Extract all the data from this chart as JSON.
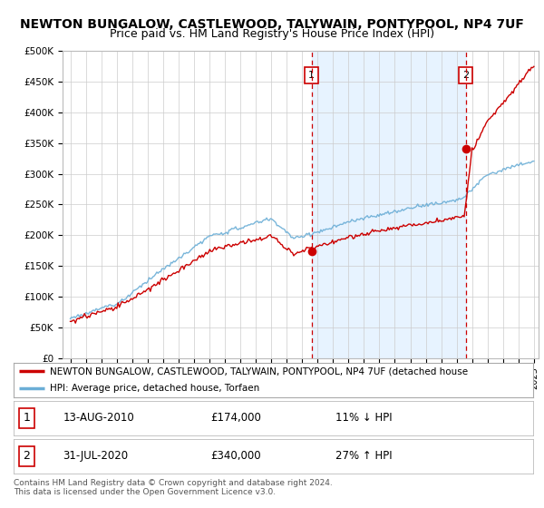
{
  "title": "NEWTON BUNGALOW, CASTLEWOOD, TALYWAIN, PONTYPOOL, NP4 7UF",
  "subtitle": "Price paid vs. HM Land Registry's House Price Index (HPI)",
  "title_fontsize": 10,
  "subtitle_fontsize": 9,
  "background_color": "#ffffff",
  "plot_bg_color": "#ffffff",
  "grid_color": "#cccccc",
  "hpi_color": "#6baed6",
  "hpi_fill_color": "#ddeeff",
  "price_color": "#cc0000",
  "vline_color": "#cc0000",
  "shade_alpha": 0.18,
  "ylim": [
    0,
    500000
  ],
  "yticks": [
    0,
    50000,
    100000,
    150000,
    200000,
    250000,
    300000,
    350000,
    400000,
    450000,
    500000
  ],
  "ytick_labels": [
    "£0",
    "£50K",
    "£100K",
    "£150K",
    "£200K",
    "£250K",
    "£300K",
    "£350K",
    "£400K",
    "£450K",
    "£500K"
  ],
  "xstart_year": 1995,
  "xend_year": 2025,
  "sale1_year": 2010.617,
  "sale1_price": 174000,
  "sale1_label": "1",
  "sale1_date": "13-AUG-2010",
  "sale1_hpi_diff": "11% ↓ HPI",
  "sale2_year": 2020.583,
  "sale2_price": 340000,
  "sale2_label": "2",
  "sale2_date": "31-JUL-2020",
  "sale2_hpi_diff": "27% ↑ HPI",
  "legend_line1": "NEWTON BUNGALOW, CASTLEWOOD, TALYWAIN, PONTYPOOL, NP4 7UF (detached house",
  "legend_line2": "HPI: Average price, detached house, Torfaen",
  "footer": "Contains HM Land Registry data © Crown copyright and database right 2024.\nThis data is licensed under the Open Government Licence v3.0."
}
